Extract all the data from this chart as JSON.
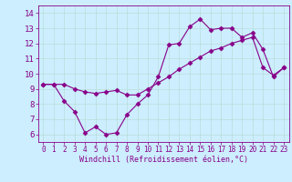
{
  "xlabel": "Windchill (Refroidissement éolien,°C)",
  "background_color": "#cceeff",
  "grid_color": "#b8ddd8",
  "line_color": "#880088",
  "xlim": [
    -0.5,
    23.5
  ],
  "ylim": [
    5.5,
    14.5
  ],
  "yticks": [
    6,
    7,
    8,
    9,
    10,
    11,
    12,
    13,
    14
  ],
  "xticks": [
    0,
    1,
    2,
    3,
    4,
    5,
    6,
    7,
    8,
    9,
    10,
    11,
    12,
    13,
    14,
    15,
    16,
    17,
    18,
    19,
    20,
    21,
    22,
    23
  ],
  "series1_x": [
    0,
    1,
    2,
    3,
    4,
    5,
    6,
    7,
    8,
    9,
    10,
    11,
    12,
    13,
    14,
    15,
    16,
    17,
    18,
    19,
    20,
    21,
    22,
    23
  ],
  "series1_y": [
    9.3,
    9.3,
    8.2,
    7.5,
    6.1,
    6.5,
    6.0,
    6.1,
    7.3,
    8.0,
    8.6,
    9.8,
    11.9,
    12.0,
    13.1,
    13.6,
    12.9,
    13.0,
    13.0,
    12.4,
    12.7,
    11.6,
    9.8,
    10.4
  ],
  "series2_x": [
    0,
    1,
    2,
    3,
    4,
    5,
    6,
    7,
    8,
    9,
    10,
    11,
    12,
    13,
    14,
    15,
    16,
    17,
    18,
    19,
    20,
    21,
    22,
    23
  ],
  "series2_y": [
    9.3,
    9.3,
    9.3,
    9.0,
    8.8,
    8.7,
    8.8,
    8.9,
    8.6,
    8.6,
    9.0,
    9.4,
    9.8,
    10.3,
    10.7,
    11.1,
    11.5,
    11.7,
    12.0,
    12.2,
    12.4,
    10.4,
    9.9,
    10.4
  ]
}
